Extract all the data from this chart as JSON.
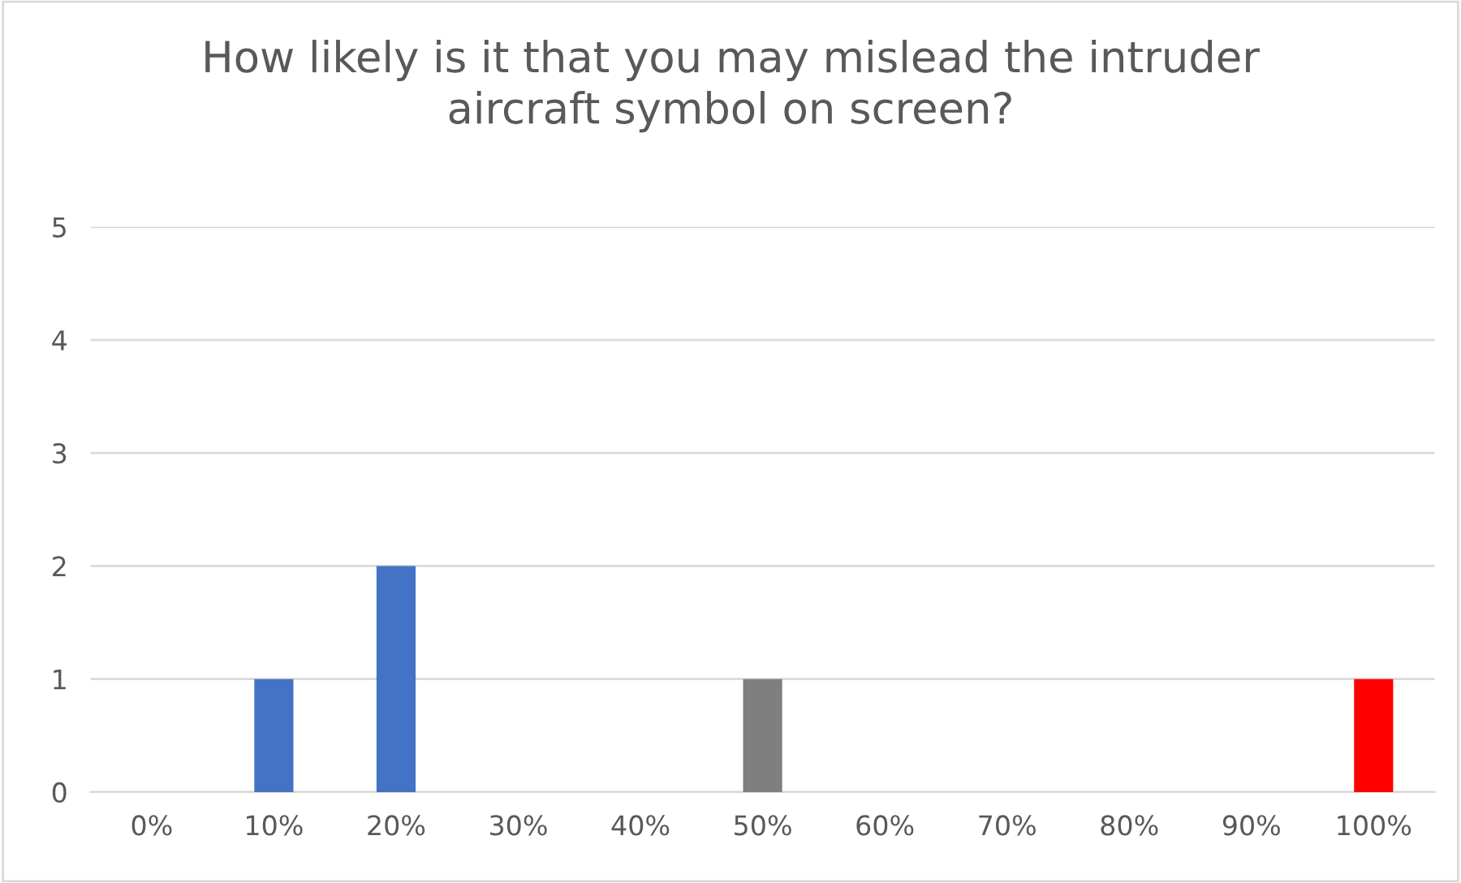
{
  "chart_data": {
    "type": "bar",
    "title": "How likely is it that you may mislead the intruder\naircraft symbol on screen?",
    "categories": [
      "0%",
      "10%",
      "20%",
      "30%",
      "40%",
      "50%",
      "60%",
      "70%",
      "80%",
      "90%",
      "100%"
    ],
    "values": [
      0,
      1,
      2,
      0,
      0,
      1,
      0,
      0,
      0,
      0,
      1
    ],
    "colors": [
      "#4472c4",
      "#4472c4",
      "#4472c4",
      "#4472c4",
      "#4472c4",
      "#7f7f7f",
      "#7f7f7f",
      "#7f7f7f",
      "#7f7f7f",
      "#7f7f7f",
      "#ff0000"
    ],
    "ylim": [
      0,
      5
    ],
    "yticks": [
      0,
      1,
      2,
      3,
      4,
      5
    ],
    "grid": "y",
    "legend": false
  }
}
